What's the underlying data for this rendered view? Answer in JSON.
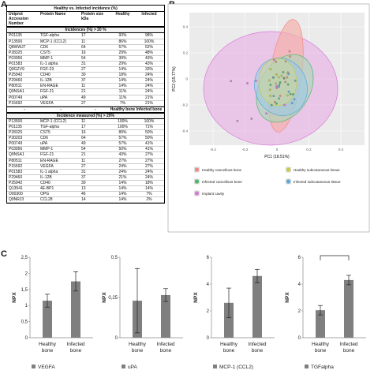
{
  "panel_letters": {
    "a": "A",
    "b": "B",
    "c": "C"
  },
  "table": {
    "title": "Healthy vs. Infected incidence (%)",
    "headers": [
      "Uniprot Accession Number",
      "Protein Name",
      "Protein size kDa",
      "Healthy",
      "Infected"
    ],
    "section1_title": "Incidences (%) > 20 %",
    "section1_rows": [
      [
        "P01135",
        "TGF-alpha",
        "17",
        "93%",
        "98%"
      ],
      [
        "P13500",
        "MCP-1 (CCL2)",
        "11",
        "86%",
        "100%"
      ],
      [
        "Q8WWJ7",
        "CD6",
        "64",
        "57%",
        "52%"
      ],
      [
        "P28325",
        "CST5",
        "16",
        "29%",
        "48%"
      ],
      [
        "P03956",
        "MMP-1",
        "54",
        "39%",
        "43%"
      ],
      [
        "P01583",
        "IL-1 alpha",
        "31",
        "29%",
        "43%"
      ],
      [
        "Q9GZV9",
        "FGF-23",
        "27",
        "14%",
        "33%"
      ],
      [
        "P25942",
        "CD40",
        "30",
        "18%",
        "24%"
      ],
      [
        "P29460",
        "IL-12B",
        "37",
        "14%",
        "24%"
      ],
      [
        "P80511",
        "EN-RAGE",
        "11",
        "14%",
        "24%"
      ],
      [
        "Q9NSA1",
        "FGF-21",
        "21",
        "11%",
        "24%"
      ],
      [
        "P00749",
        "uPA",
        "49",
        "11%",
        "21%"
      ],
      [
        "P15692",
        "VEGFA",
        "27",
        "7%",
        "21%"
      ]
    ],
    "sub_header": [
      "-",
      "-",
      "-",
      "Healthy bone",
      "Infected bone"
    ],
    "section2_title": "Incidence measured (%) > 20%",
    "section2_rows": [
      [
        "P13500",
        "MCP-1 (CCL2)",
        "11",
        "100%",
        "100%"
      ],
      [
        "P01135",
        "TGF-alpha",
        "17",
        "100%",
        "71%"
      ],
      [
        "P28325",
        "CST5",
        "16",
        "89%",
        "50%"
      ],
      [
        "P30203",
        "CD6",
        "64",
        "57%",
        "50%"
      ],
      [
        "P00749",
        "uPA",
        "49",
        "57%",
        "41%"
      ],
      [
        "P03956",
        "MMP-1",
        "54",
        "50%",
        "41%"
      ],
      [
        "Q9NSA1",
        "FGF-21",
        "21",
        "43%",
        "27%"
      ],
      [
        "P80511",
        "EN-RAGE",
        "11",
        "27%",
        "27%"
      ],
      [
        "P15692",
        "VEGFA",
        "27",
        "24%",
        "27%"
      ],
      [
        "P01583",
        "IL-1 alpha",
        "31",
        "24%",
        "24%"
      ],
      [
        "P29460",
        "IL-12B",
        "37",
        "21%",
        "24%"
      ],
      [
        "P25942",
        "CD40",
        "30",
        "14%",
        "18%"
      ],
      [
        "Q13541",
        "4E-BP1",
        "13",
        "14%",
        "14%"
      ],
      [
        "O00300",
        "OPG",
        "46",
        "14%",
        "7%"
      ],
      [
        "Q9NRJ3",
        "CCL28",
        "14",
        "14%",
        "2%"
      ]
    ]
  },
  "pca": {
    "xlabel": "PC1 (18.51%)",
    "ylabel": "PC2 (15.77%)",
    "x_ticks": [
      "-0.4",
      "-0.2",
      "0",
      "0.2",
      "0.4"
    ],
    "y_ticks": [
      "0.4",
      "0.2",
      "0",
      "-0.2",
      "-0.4"
    ],
    "legend": [
      {
        "label": "Healthy cancellous bone",
        "color": "#f08a84"
      },
      {
        "label": "Healthy subcutaneous tissue",
        "color": "#c9c94a"
      },
      {
        "label": "Infected cancellous bone",
        "color": "#4cb86b"
      },
      {
        "label": "Infected subcutaneous tissue",
        "color": "#5aa9d6"
      },
      {
        "label": "Implant cavity",
        "color": "#d77ad6"
      }
    ]
  },
  "chart_data": [
    {
      "type": "bar",
      "categories": [
        "Healthy bone",
        "Infected bone"
      ],
      "values": [
        1.15,
        1.75
      ],
      "errors": [
        0.2,
        0.3
      ],
      "ylabel": "NPX",
      "ylim": [
        0,
        2.5
      ],
      "yticks": [
        "0",
        "0,5",
        "1",
        "1,5",
        "2",
        "2,5"
      ],
      "legend": "VEGFA",
      "color": "#7f7f7f"
    },
    {
      "type": "bar",
      "categories": [
        "Healthy bone",
        "Infected bone"
      ],
      "values": [
        0.23,
        0.265
      ],
      "errors": [
        0.2,
        0.04
      ],
      "ylabel": "NPX",
      "ylim": [
        0,
        0.5
      ],
      "yticks": [
        "0",
        "0,25",
        "0,5"
      ],
      "legend": "uPA",
      "color": "#7f7f7f"
    },
    {
      "type": "bar",
      "categories": [
        "Healthy bone",
        "Infected bone"
      ],
      "values": [
        2.6,
        4.6
      ],
      "errors": [
        1.1,
        0.5
      ],
      "ylabel": "NPX",
      "ylim": [
        0,
        6
      ],
      "yticks": [
        "0",
        "2",
        "4",
        "6"
      ],
      "legend": "MCP-1 (CCL2)",
      "color": "#7f7f7f"
    },
    {
      "type": "bar",
      "categories": [
        "Healthy bone",
        "Infected bone"
      ],
      "values": [
        2.05,
        4.3
      ],
      "errors": [
        0.35,
        0.35
      ],
      "ylabel": "NPX",
      "ylim": [
        0,
        6
      ],
      "yticks": [
        "0",
        "2",
        "4",
        "6"
      ],
      "legend": "TGFalpha",
      "color": "#7f7f7f",
      "significance": true
    }
  ]
}
